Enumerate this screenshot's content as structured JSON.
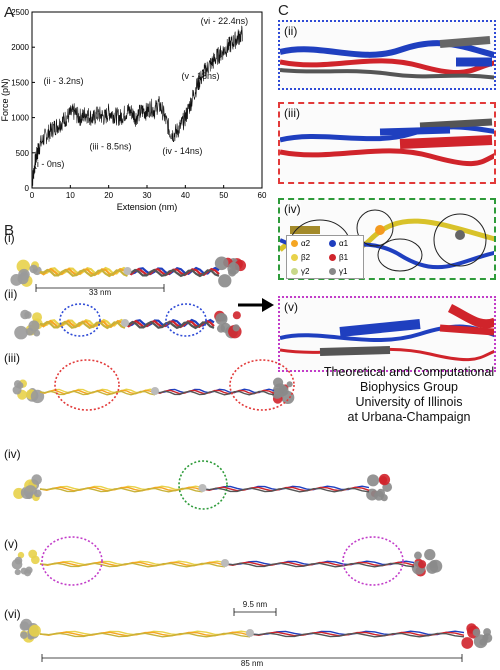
{
  "panels": {
    "a_letter": "A",
    "b_letter": "B",
    "c_letter": "C"
  },
  "chart_data": {
    "type": "line",
    "xlabel": "Extension (nm)",
    "ylabel": "Force (pN)",
    "xlim": [
      0,
      60
    ],
    "ylim": [
      0,
      2500
    ],
    "xticks": [
      0,
      10,
      20,
      30,
      40,
      50,
      60
    ],
    "yticks": [
      0,
      500,
      1000,
      1500,
      2000,
      2500
    ],
    "series": [
      {
        "x": [
          0,
          0.5,
          1,
          1.5,
          2,
          3,
          4,
          5,
          6,
          7,
          8,
          9,
          10,
          11,
          12,
          13,
          14,
          15,
          16,
          17,
          18,
          19,
          20,
          21,
          22,
          23,
          24,
          25,
          26,
          27,
          28,
          29,
          30,
          31,
          32,
          33,
          34,
          35,
          36,
          37,
          38,
          39,
          40,
          41,
          42,
          43,
          44,
          45,
          46,
          47,
          48,
          49,
          50,
          51,
          52,
          53,
          54,
          55
        ],
        "y": [
          60,
          250,
          420,
          520,
          600,
          700,
          760,
          820,
          870,
          900,
          950,
          1000,
          1050,
          1080,
          1020,
          1000,
          1060,
          1020,
          980,
          1050,
          1030,
          1000,
          1080,
          1050,
          1020,
          1000,
          1050,
          1100,
          1080,
          1000,
          1060,
          1100,
          1080,
          1150,
          1100,
          1200,
          1100,
          950,
          800,
          760,
          820,
          900,
          1000,
          1150,
          1300,
          1450,
          1550,
          1650,
          1720,
          1780,
          1850,
          1900,
          1950,
          2000,
          2050,
          2100,
          2150,
          2200
        ]
      }
    ],
    "annotations": [
      {
        "text": "(i - 0ns)",
        "x": 0.5,
        "y": 300
      },
      {
        "text": "(ii - 3.2ns)",
        "x": 3,
        "y": 1480
      },
      {
        "text": "(iii - 8.5ns)",
        "x": 15,
        "y": 550
      },
      {
        "text": "(iv - 14ns)",
        "x": 34,
        "y": 480
      },
      {
        "text": "(v - 18ns)",
        "x": 39,
        "y": 1550
      },
      {
        "text": "(vi - 22.4ns)",
        "x": 44,
        "y": 2330
      }
    ]
  },
  "panel_b": {
    "rows": [
      "(i)",
      "(ii)",
      "(iii)",
      "(iv)",
      "(v)",
      "(vi)"
    ],
    "scale_33": "33 nm",
    "scale_9_5": "9.5 nm",
    "scale_85": "85 nm",
    "legend": [
      {
        "label": "α2",
        "color": "#f5a623"
      },
      {
        "label": "α1",
        "color": "#1f3fbf"
      },
      {
        "label": "β2",
        "color": "#e8d24a"
      },
      {
        "label": "β1",
        "color": "#d0242b"
      },
      {
        "label": "γ2",
        "color": "#c8d88a"
      },
      {
        "label": "γ1",
        "color": "#888888"
      }
    ]
  },
  "panel_c": {
    "boxes": [
      "(ii)",
      "(iii)",
      "(iv)",
      "(v)"
    ],
    "colors": {
      "ii": "#2f4bd6",
      "iii": "#e23a3a",
      "iv": "#2e9b3a",
      "v": "#c23dc9"
    }
  },
  "affiliation": {
    "line1": "Theoretical and Computational",
    "line2": "Biophysics Group",
    "line3": "University of Illinois",
    "line4": "at Urbana-Champaign"
  }
}
